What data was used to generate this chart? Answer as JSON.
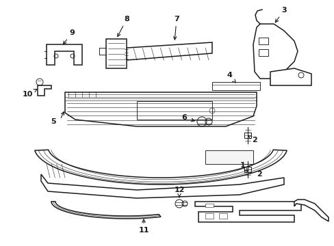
{
  "bg_color": "#ffffff",
  "line_color": "#1a1a1a",
  "figsize": [
    4.89,
    3.6
  ],
  "dpi": 100,
  "lw_main": 1.1,
  "lw_thin": 0.65,
  "lw_xtra": 0.4,
  "fs": 8.0
}
